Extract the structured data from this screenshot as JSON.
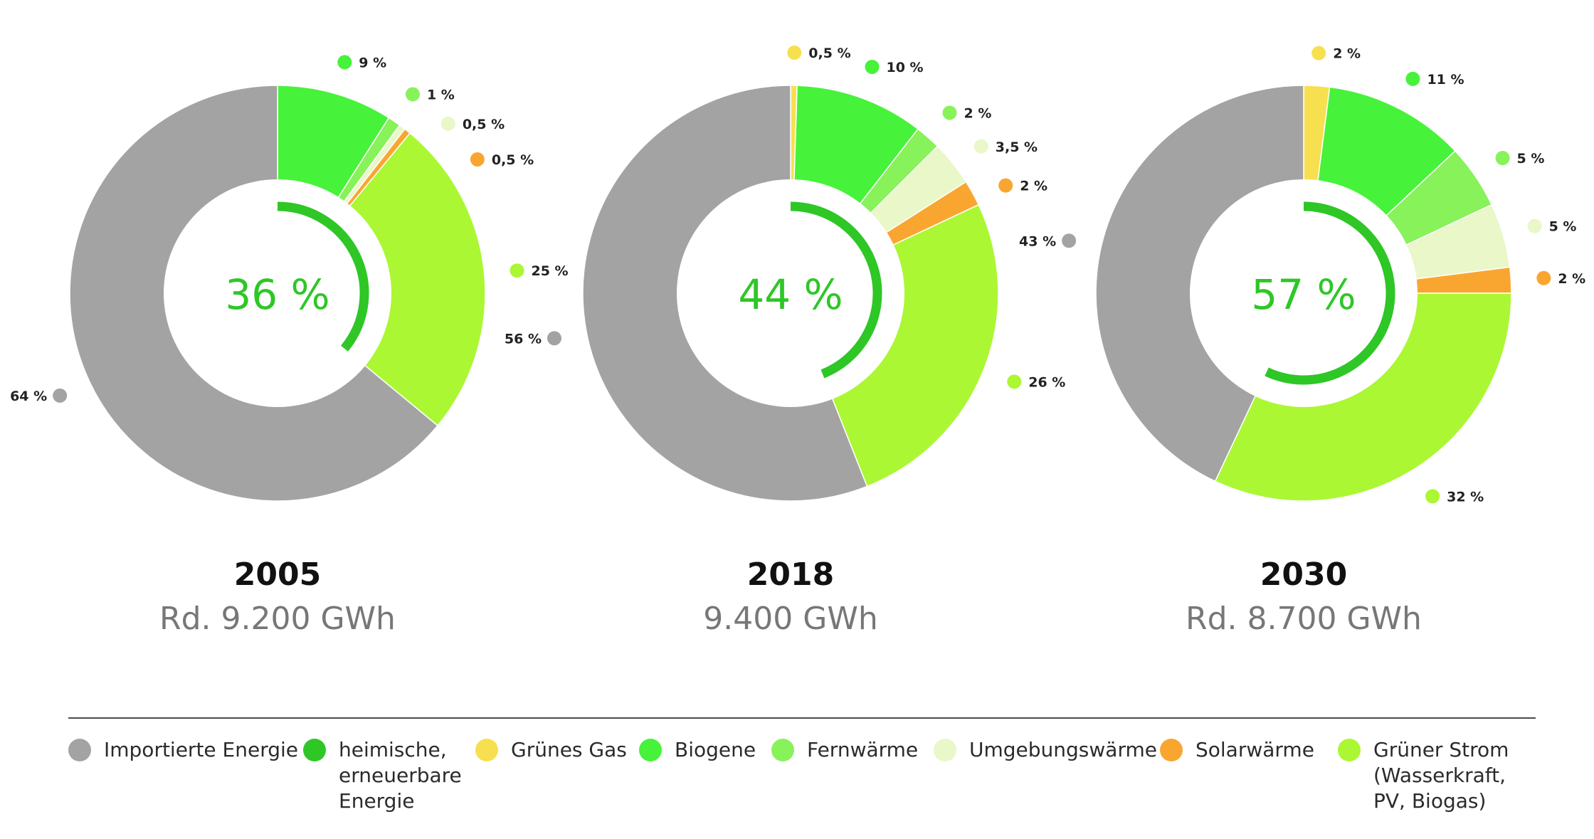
{
  "chart_data": [
    {
      "type": "pie",
      "year": "2005",
      "total": "Rd. 9.200 GWh",
      "center_label": "36 %",
      "renewable_share": 36,
      "categories": [
        "Grünes Gas",
        "Biogene",
        "Fernwärme",
        "Umgebungswärme",
        "Solarwärme",
        "Grüner Strom (Wasserkraft, PV, Biogas)",
        "Importierte Energie"
      ],
      "values": [
        0,
        9,
        1,
        0.5,
        0.5,
        25,
        64
      ],
      "labels": [
        "",
        "9 %",
        "1 %",
        "0,5 %",
        "0,5 %",
        "25 %",
        "64 %"
      ]
    },
    {
      "type": "pie",
      "year": "2018",
      "total": "9.400 GWh",
      "center_label": "44 %",
      "renewable_share": 44,
      "categories": [
        "Grünes Gas",
        "Biogene",
        "Fernwärme",
        "Umgebungswärme",
        "Solarwärme",
        "Grüner Strom (Wasserkraft, PV, Biogas)",
        "Importierte Energie"
      ],
      "values": [
        0.5,
        10,
        2,
        3.5,
        2,
        26,
        56
      ],
      "labels": [
        "0,5 %",
        "10 %",
        "2 %",
        "3,5 %",
        "2 %",
        "26 %",
        "56 %"
      ]
    },
    {
      "type": "pie",
      "year": "2030",
      "total": "Rd. 8.700 GWh",
      "center_label": "57 %",
      "renewable_share": 57,
      "categories": [
        "Grünes Gas",
        "Biogene",
        "Fernwärme",
        "Umgebungswärme",
        "Solarwärme",
        "Grüner Strom (Wasserkraft, PV, Biogas)",
        "Importierte Energie"
      ],
      "values": [
        2,
        11,
        5,
        5,
        2,
        32,
        43
      ],
      "labels": [
        "2 %",
        "11 %",
        "5 %",
        "5 %",
        "2 %",
        "32 %",
        "43 %"
      ]
    }
  ],
  "colors": [
    "#f7e04f",
    "#47f23a",
    "#88f25a",
    "#e9f7c9",
    "#f9a631",
    "#abf734",
    "#a3a3a3"
  ],
  "center_color": "#2ec726",
  "legend": [
    {
      "label": "Importierte Energie",
      "color": "#a3a3a3"
    },
    {
      "label": "heimische,\nerneuerbare\nEnergie",
      "color": "#2ec726"
    },
    {
      "label": "Grünes Gas",
      "color": "#f7e04f"
    },
    {
      "label": "Biogene",
      "color": "#47f23a"
    },
    {
      "label": "Fernwärme",
      "color": "#88f25a"
    },
    {
      "label": "Umgebungswärme",
      "color": "#e9f7c9"
    },
    {
      "label": "Solarwärme",
      "color": "#f9a631"
    },
    {
      "label": "Grüner Strom\n(Wasserkraft,\nPV, Biogas)",
      "color": "#abf734"
    }
  ]
}
